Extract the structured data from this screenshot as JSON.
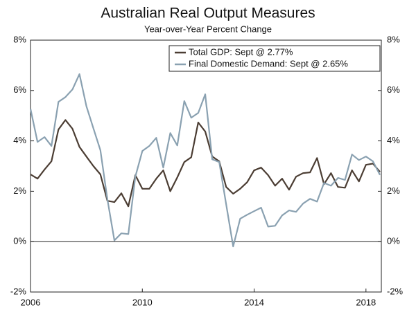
{
  "chart_data": {
    "type": "line",
    "title": "Australian Real Output Measures",
    "subtitle": "Year-over-Year Percent Change",
    "x": [
      2006,
      2006.25,
      2006.5,
      2006.75,
      2007,
      2007.25,
      2007.5,
      2007.75,
      2008,
      2008.25,
      2008.5,
      2008.75,
      2009,
      2009.25,
      2009.5,
      2009.75,
      2010,
      2010.25,
      2010.5,
      2010.75,
      2011,
      2011.25,
      2011.5,
      2011.75,
      2012,
      2012.25,
      2012.5,
      2012.75,
      2013,
      2013.25,
      2013.5,
      2013.75,
      2014,
      2014.25,
      2014.5,
      2014.75,
      2015,
      2015.25,
      2015.5,
      2015.75,
      2016,
      2016.25,
      2016.5,
      2016.75,
      2017,
      2017.25,
      2017.5,
      2017.75,
      2018,
      2018.25,
      2018.5
    ],
    "series": [
      {
        "name": "Total GDP: Sept @ 2.77%",
        "color": "#4b3d33",
        "values": [
          2.67,
          2.5,
          2.86,
          3.19,
          4.45,
          4.83,
          4.48,
          3.76,
          3.38,
          3.0,
          2.67,
          1.62,
          1.57,
          1.92,
          1.4,
          2.64,
          2.1,
          2.1,
          2.5,
          2.83,
          2.0,
          2.55,
          3.16,
          3.35,
          4.73,
          4.37,
          3.38,
          3.19,
          2.17,
          1.9,
          2.1,
          2.36,
          2.83,
          2.94,
          2.64,
          2.22,
          2.5,
          2.06,
          2.58,
          2.72,
          2.75,
          3.32,
          2.28,
          2.72,
          2.17,
          2.14,
          2.83,
          2.39,
          3.05,
          3.1,
          2.77
        ]
      },
      {
        "name": "Final Domestic Demand: Sept @ 2.65%",
        "color": "#8aa1b1",
        "values": [
          5.27,
          3.96,
          4.15,
          3.8,
          5.55,
          5.74,
          6.04,
          6.65,
          5.38,
          4.5,
          3.63,
          1.68,
          0.05,
          0.33,
          0.3,
          2.58,
          3.6,
          3.8,
          4.12,
          2.94,
          4.31,
          3.82,
          5.58,
          4.92,
          5.11,
          5.85,
          3.27,
          3.16,
          1.48,
          -0.19,
          0.91,
          1.07,
          1.21,
          1.35,
          0.6,
          0.63,
          1.04,
          1.24,
          1.18,
          1.51,
          1.7,
          1.59,
          2.33,
          2.22,
          2.53,
          2.45,
          3.46,
          3.24,
          3.38,
          3.19,
          2.65
        ]
      }
    ],
    "xlim": [
      2006,
      2018.55
    ],
    "xticks": [
      2006,
      2010,
      2014,
      2018
    ],
    "ylim": [
      -2,
      8
    ],
    "yticks": [
      {
        "value": -2,
        "label": "-2%"
      },
      {
        "value": 0,
        "label": "0%"
      },
      {
        "value": 2,
        "label": "2%"
      },
      {
        "value": 4,
        "label": "4%"
      },
      {
        "value": 6,
        "label": "6%"
      },
      {
        "value": 8,
        "label": "8%"
      }
    ],
    "legend": "top-right"
  }
}
